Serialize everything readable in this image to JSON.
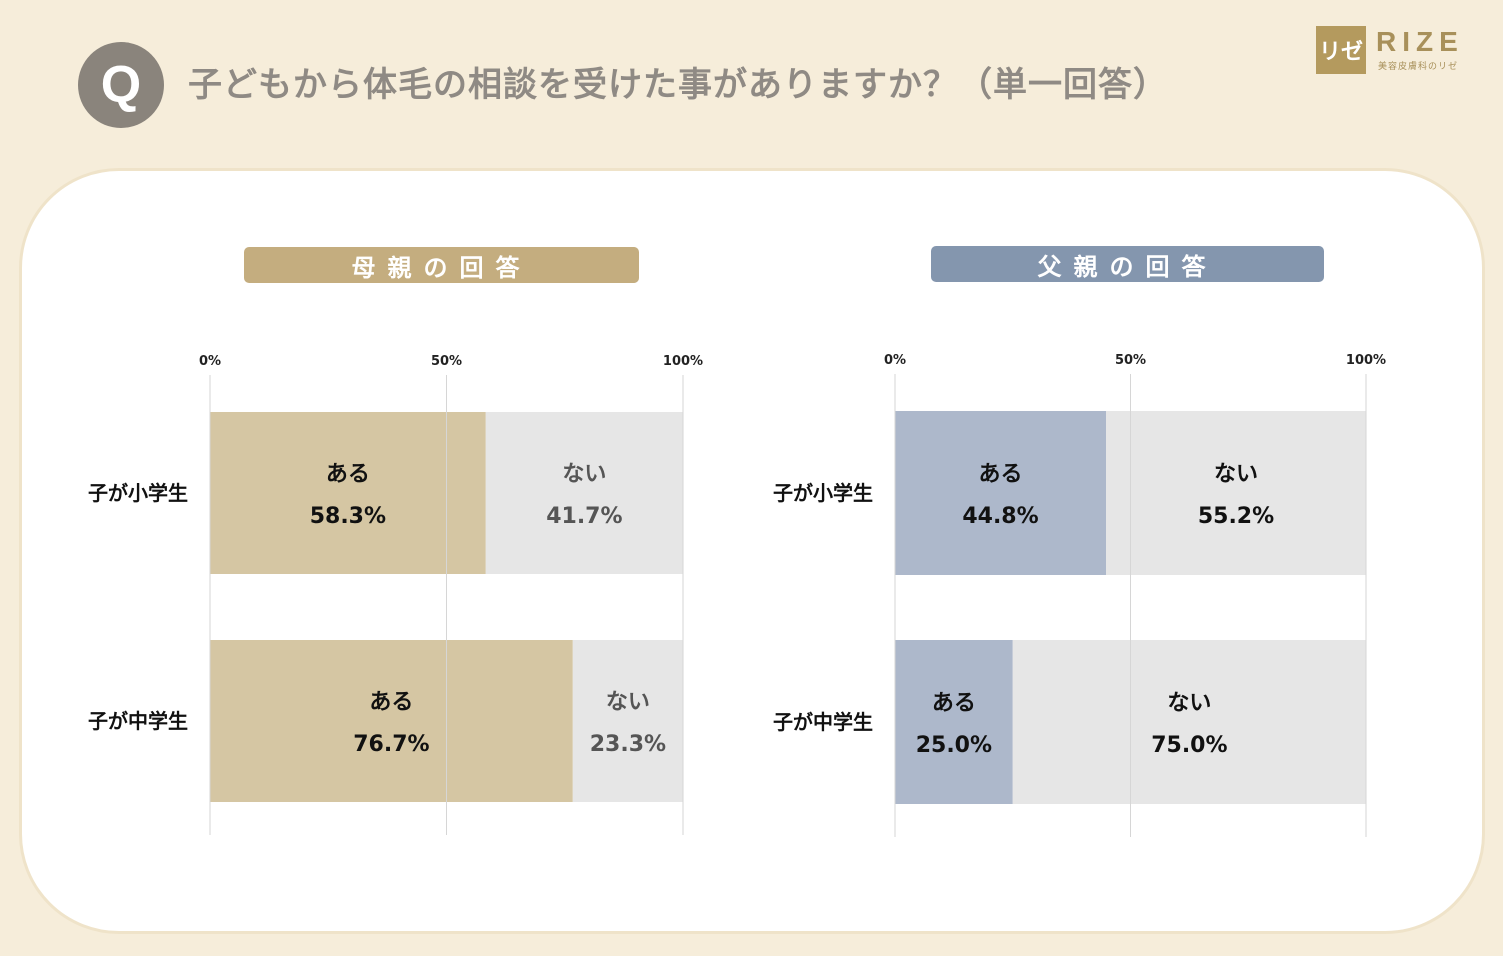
{
  "question": {
    "mark": "Q",
    "text": "子どもから体毛の相談を受けた事がありますか？（単一回答）"
  },
  "logo": {
    "mark": "リゼ",
    "text": "RIZE",
    "sub": "美容皮膚科のリゼ"
  },
  "charts": {
    "mother": {
      "header": "母親の回答"
    },
    "father": {
      "header": "父親の回答"
    }
  },
  "chart_data": [
    {
      "type": "bar",
      "stacked": true,
      "orientation": "horizontal",
      "title": "母親の回答",
      "categories": [
        "子が小学生",
        "子が中学生"
      ],
      "series": [
        {
          "name": "ある",
          "values": [
            58.3,
            76.7
          ],
          "labels": [
            "58.3%",
            "76.7%"
          ],
          "color": "#d5c6a3",
          "text_color": "#111111"
        },
        {
          "name": "ない",
          "values": [
            41.7,
            23.3
          ],
          "labels": [
            "41.7%",
            "23.3%"
          ],
          "color": "#e6e6e6",
          "text_color": "#555555"
        }
      ],
      "xlim": [
        0,
        100
      ],
      "ticks": [
        "0%",
        "50%",
        "100%"
      ],
      "grid": true
    },
    {
      "type": "bar",
      "stacked": true,
      "orientation": "horizontal",
      "title": "父親の回答",
      "categories": [
        "子が小学生",
        "子が中学生"
      ],
      "series": [
        {
          "name": "ある",
          "values": [
            44.8,
            25.0
          ],
          "labels": [
            "44.8%",
            "25.0%"
          ],
          "color": "#adb8cb",
          "text_color": "#111111"
        },
        {
          "name": "ない",
          "values": [
            55.2,
            75.0
          ],
          "labels": [
            "55.2%",
            "75.0%"
          ],
          "color": "#e6e6e6",
          "text_color": "#111111"
        }
      ],
      "xlim": [
        0,
        100
      ],
      "ticks": [
        "0%",
        "50%",
        "100%"
      ],
      "grid": true
    }
  ]
}
